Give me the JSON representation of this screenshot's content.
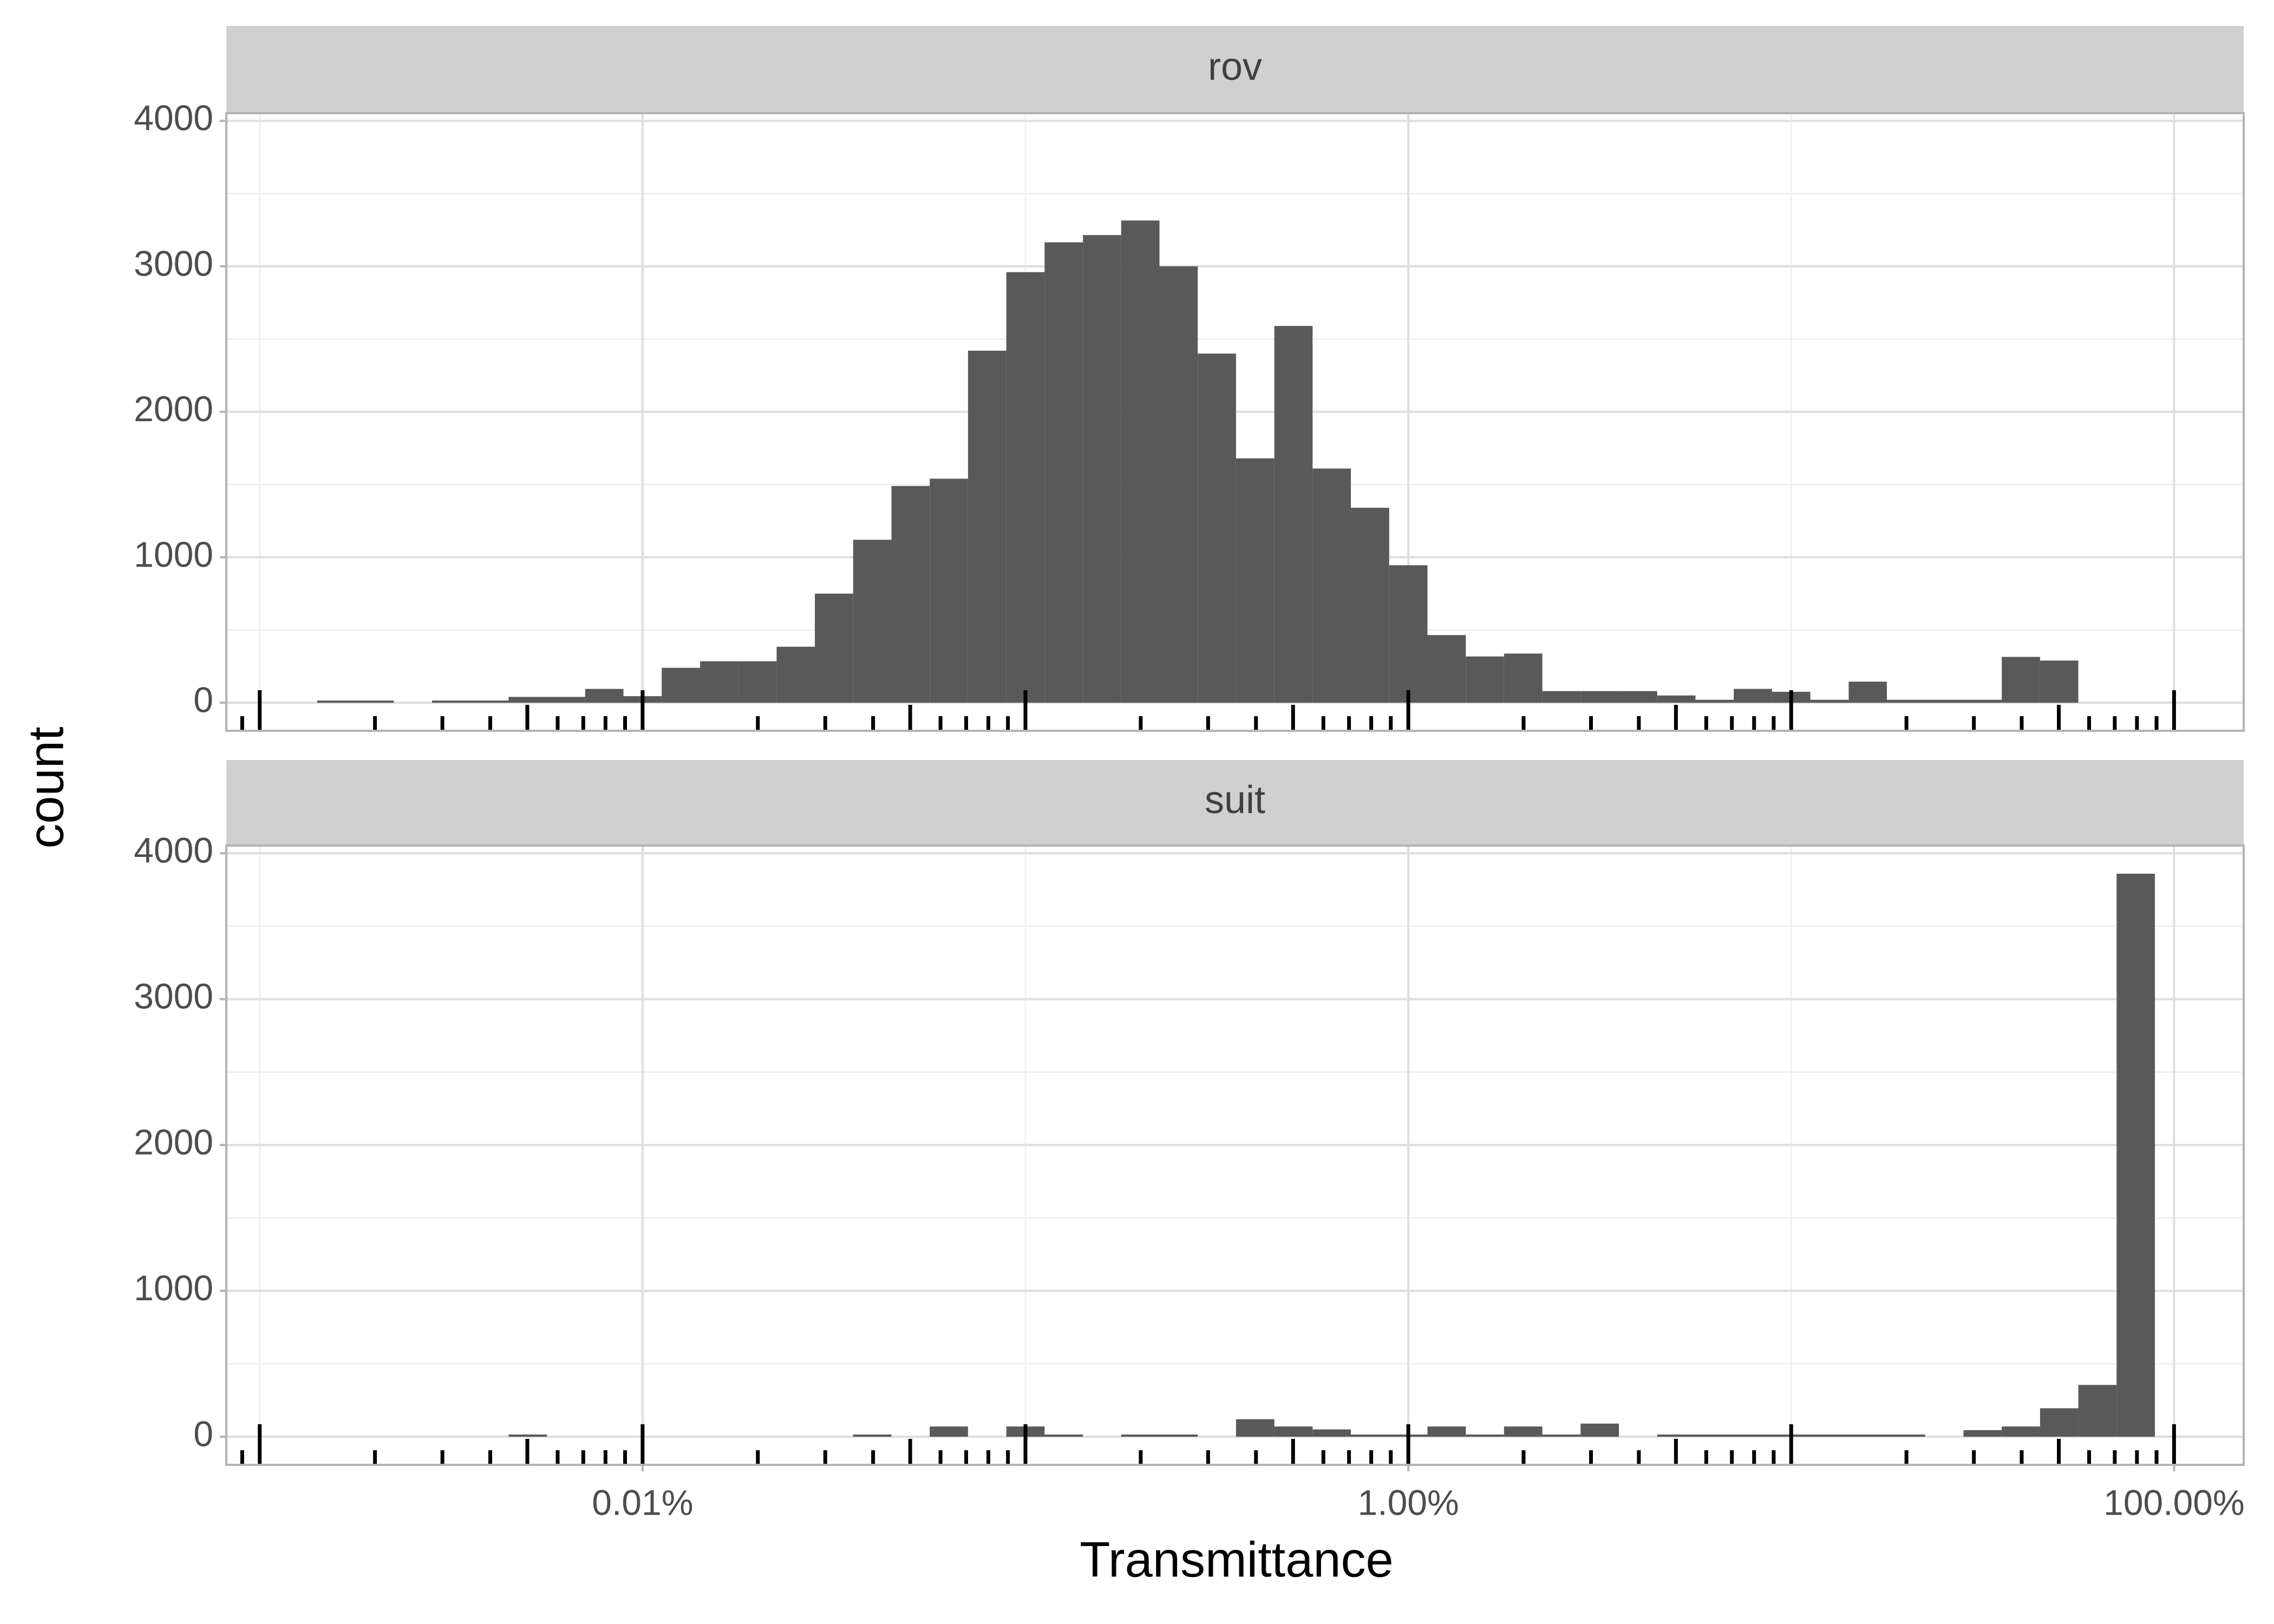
{
  "chart_data": {
    "type": "histogram",
    "xlabel": "Transmittance",
    "ylabel": "count",
    "log_x": true,
    "grid": true,
    "color": "#595959",
    "bins": [
      0.001413,
      0.001778,
      0.002239,
      0.002818,
      0.003548,
      0.004467,
      0.005623,
      0.007079,
      0.008913,
      0.01122,
      0.01413,
      0.01778,
      0.02239,
      0.02818,
      0.03548,
      0.04467,
      0.05623,
      0.07079,
      0.08913,
      0.1122,
      0.1413,
      0.1778,
      0.2239,
      0.2818,
      0.3548,
      0.4467,
      0.5623,
      0.7079,
      0.8913,
      1.122,
      1.413,
      1.778,
      2.239,
      2.818,
      3.548,
      4.467,
      5.623,
      7.079,
      8.913,
      11.22,
      14.13,
      17.78,
      22.39,
      28.18,
      35.48,
      44.67,
      56.23,
      70.79,
      89.13
    ],
    "panels": [
      {
        "name": "rov",
        "counts": [
          15,
          15,
          0,
          15,
          15,
          40,
          40,
          95,
          45,
          240,
          285,
          285,
          385,
          750,
          1120,
          1490,
          1540,
          2420,
          2960,
          3165,
          3215,
          3315,
          3000,
          2400,
          1680,
          2590,
          1610,
          1340,
          945,
          465,
          318,
          338,
          80,
          80,
          80,
          50,
          20,
          95,
          75,
          20,
          145,
          20,
          20,
          20,
          315,
          290,
          0,
          0
        ]
      },
      {
        "name": "suit",
        "counts": [
          0,
          0,
          0,
          0,
          0,
          15,
          0,
          0,
          0,
          0,
          0,
          0,
          0,
          0,
          15,
          0,
          70,
          0,
          70,
          15,
          0,
          15,
          15,
          0,
          120,
          70,
          50,
          15,
          15,
          70,
          15,
          70,
          15,
          90,
          0,
          15,
          15,
          15,
          15,
          15,
          15,
          15,
          0,
          45,
          70,
          195,
          355,
          3860
        ]
      }
    ],
    "xlim": [
      0.000818,
      152
    ],
    "xticks": [
      {
        "value": 0.01,
        "label": "0.01%"
      },
      {
        "value": 1,
        "label": "1.00%"
      },
      {
        "value": 100,
        "label": "100.00%"
      }
    ],
    "xminor": [
      0.001,
      0.1,
      10
    ],
    "ylim": [
      -193,
      4053
    ],
    "yticks": [
      0,
      1000,
      2000,
      3000,
      4000
    ],
    "yminor": [
      500,
      1500,
      2500,
      3500
    ],
    "logticks": [
      0.0009,
      0.001,
      0.002,
      0.003,
      0.004,
      0.005,
      0.006,
      0.007,
      0.008,
      0.009,
      0.01,
      0.02,
      0.03,
      0.04,
      0.05,
      0.06,
      0.07,
      0.08,
      0.09,
      0.1,
      0.2,
      0.3,
      0.4,
      0.5,
      0.6,
      0.7,
      0.8,
      0.9,
      1,
      2,
      3,
      4,
      5,
      6,
      7,
      8,
      9,
      10,
      20,
      30,
      40,
      50,
      60,
      70,
      80,
      90,
      100
    ]
  }
}
